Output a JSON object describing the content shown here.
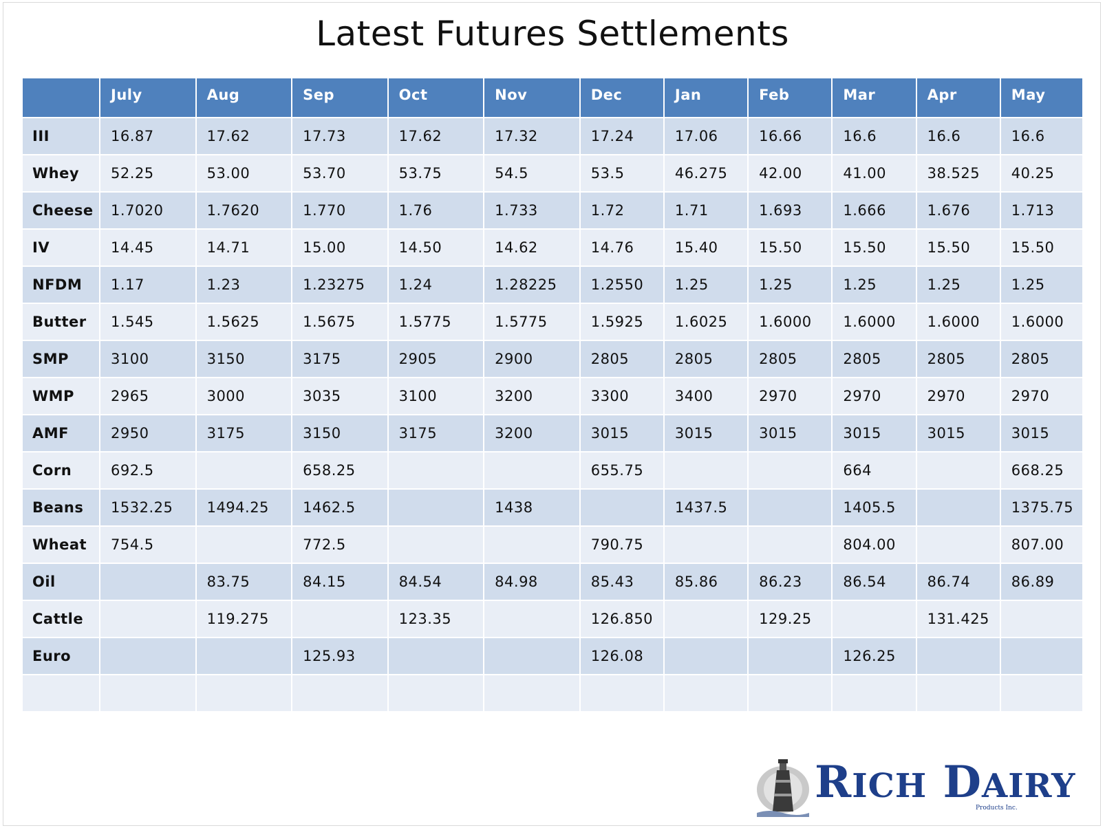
{
  "title": "Latest Futures Settlements",
  "table": {
    "columns": [
      "",
      "July",
      "Aug",
      "Sep",
      "Oct",
      "Nov",
      "Dec",
      "Jan",
      "Feb",
      "Mar",
      "Apr",
      "May"
    ],
    "rows": [
      [
        "III",
        "16.87",
        "17.62",
        "17.73",
        "17.62",
        "17.32",
        "17.24",
        "17.06",
        "16.66",
        "16.6",
        "16.6",
        "16.6"
      ],
      [
        "Whey",
        "52.25",
        "53.00",
        "53.70",
        "53.75",
        "54.5",
        "53.5",
        "46.275",
        "42.00",
        "41.00",
        "38.525",
        "40.25"
      ],
      [
        "Cheese",
        "1.7020",
        "1.7620",
        "1.770",
        "1.76",
        "1.733",
        "1.72",
        "1.71",
        "1.693",
        "1.666",
        "1.676",
        "1.713"
      ],
      [
        "IV",
        "14.45",
        "14.71",
        "15.00",
        "14.50",
        "14.62",
        "14.76",
        "15.40",
        "15.50",
        "15.50",
        "15.50",
        "15.50"
      ],
      [
        "NFDM",
        "1.17",
        "1.23",
        "1.23275",
        "1.24",
        "1.28225",
        "1.2550",
        "1.25",
        "1.25",
        "1.25",
        "1.25",
        "1.25"
      ],
      [
        "Butter",
        "1.545",
        "1.5625",
        "1.5675",
        "1.5775",
        "1.5775",
        "1.5925",
        "1.6025",
        "1.6000",
        "1.6000",
        "1.6000",
        "1.6000"
      ],
      [
        " SMP",
        "3100",
        "3150",
        "3175",
        "2905",
        "2900",
        "2805",
        "2805",
        "2805",
        "2805",
        "2805",
        "2805"
      ],
      [
        "WMP",
        "2965",
        "3000",
        "3035",
        "3100",
        "3200",
        "3300",
        "3400",
        "2970",
        "2970",
        "2970",
        "2970"
      ],
      [
        "AMF",
        "2950",
        "3175",
        "3150",
        "3175",
        "3200",
        "3015",
        "3015",
        "3015",
        "3015",
        "3015",
        "3015"
      ],
      [
        "Corn",
        "692.5",
        "",
        "658.25",
        "",
        "",
        "655.75",
        "",
        "",
        "664",
        "",
        "668.25"
      ],
      [
        "Beans",
        "1532.25",
        "1494.25",
        "1462.5",
        "",
        "1438",
        "",
        "1437.5",
        "",
        "1405.5",
        "",
        "1375.75"
      ],
      [
        "Wheat",
        "754.5",
        "",
        "772.5",
        "",
        "",
        "790.75",
        "",
        "",
        "804.00",
        "",
        "807.00"
      ],
      [
        "Oil",
        "",
        "83.75",
        "84.15",
        "84.54",
        "84.98",
        "85.43",
        "85.86",
        "86.23",
        "86.54",
        "86.74",
        "86.89"
      ],
      [
        "Cattle",
        "",
        "119.275",
        "",
        "123.35",
        "",
        "126.850",
        "",
        "129.25",
        "",
        "131.425",
        ""
      ],
      [
        "Euro",
        "",
        "",
        "125.93",
        "",
        "",
        "126.08",
        "",
        "",
        "126.25",
        "",
        ""
      ],
      [
        "",
        "",
        "",
        "",
        "",
        "",
        "",
        "",
        "",
        "",
        "",
        ""
      ]
    ]
  },
  "logo": {
    "name": "RICH DAIRY",
    "tagline": "Products Inc.",
    "brand_color": "#1e3f8a"
  },
  "colors": {
    "header_bg": "#4f81bd",
    "row_dark": "#d0dcec",
    "row_light": "#e9eef6"
  }
}
